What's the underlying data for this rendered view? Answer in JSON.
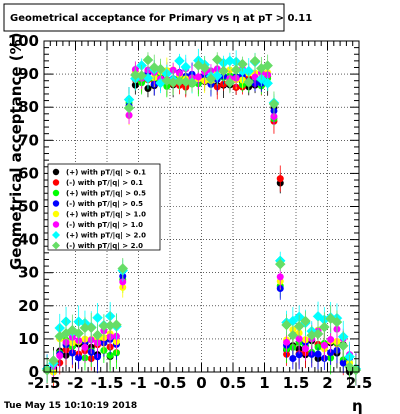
{
  "chart_data": {
    "type": "scatter",
    "title": "Geometrical acceptance for Primary vs   η at pT > 0.11",
    "xlabel": "η",
    "ylabel": "Geometrical acceptance (%)",
    "xlim": [
      -2.5,
      2.5
    ],
    "ylim": [
      0,
      100
    ],
    "x_ticks": [
      "-2.5",
      "-2",
      "-1.5",
      "-1",
      "-0.5",
      "0",
      "0.5",
      "1",
      "1.5",
      "2",
      "2.5"
    ],
    "y_ticks": [
      "0",
      "10",
      "20",
      "30",
      "40",
      "50",
      "60",
      "70",
      "80",
      "90",
      "100"
    ],
    "grid": true,
    "legend_position": "left-middle",
    "footer": "Tue May 15 10:10:19 2018",
    "series": [
      {
        "name": "(+) with pT/|q| > 0.1",
        "color": "#000000",
        "marker": "circle"
      },
      {
        "name": "(-) with pT/|q| > 0.1",
        "color": "#ff0000",
        "marker": "circle"
      },
      {
        "name": "(+) with pT/|q| > 0.5",
        "color": "#00ff00",
        "marker": "circle"
      },
      {
        "name": "(-) with pT/|q| > 0.5",
        "color": "#0000ff",
        "marker": "circle"
      },
      {
        "name": "(+) with pT/|q| > 1.0",
        "color": "#ffff00",
        "marker": "circle"
      },
      {
        "name": "(-) with pT/|q| > 1.0",
        "color": "#ff00ff",
        "marker": "circle"
      },
      {
        "name": "(+) with pT/|q| > 2.0",
        "color": "#00ffff",
        "marker": "diamond"
      },
      {
        "name": "(-) with pT/|q| > 2.0",
        "color": "#66dd66",
        "marker": "diamond"
      }
    ]
  }
}
